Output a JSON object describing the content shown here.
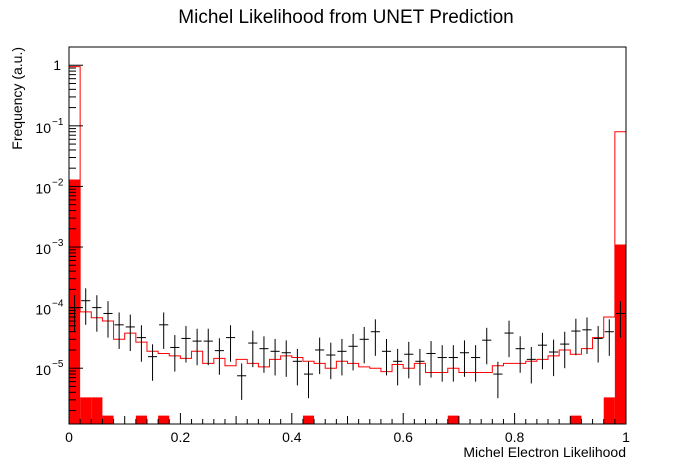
{
  "chart_data": {
    "type": "histogram",
    "title": "Michel Likelihood from UNET Prediction",
    "xlabel": "Michel Electron Likelihood",
    "ylabel": "Frequency (a.u.)",
    "xlim": [
      0,
      1
    ],
    "ylim": [
      1.2e-06,
      2.0
    ],
    "y_scale": "log",
    "bins": 50,
    "x_ticks": [
      {
        "value": 0,
        "label": "0"
      },
      {
        "value": 0.2,
        "label": "0.2"
      },
      {
        "value": 0.4,
        "label": "0.4"
      },
      {
        "value": 0.6,
        "label": "0.6"
      },
      {
        "value": 0.8,
        "label": "0.8"
      },
      {
        "value": 1,
        "label": "1"
      }
    ],
    "y_ticks": [
      {
        "value": 1,
        "base": "1",
        "exp": ""
      },
      {
        "value": 0.1,
        "base": "10",
        "exp": "−1"
      },
      {
        "value": 0.01,
        "base": "10",
        "exp": "−2"
      },
      {
        "value": 0.001,
        "base": "10",
        "exp": "−3"
      },
      {
        "value": 0.0001,
        "base": "10",
        "exp": "−4"
      },
      {
        "value": 1e-05,
        "base": "10",
        "exp": "−5"
      }
    ],
    "series": [
      {
        "style": "filled-histogram",
        "color": "#ff0000",
        "values": [
          0.013,
          3.3e-06,
          3.3e-06,
          1.65e-06,
          0,
          0,
          1.65e-06,
          0,
          1.65e-06,
          0,
          0,
          0,
          0,
          0,
          0,
          0,
          0,
          0,
          0,
          0,
          0,
          1.65e-06,
          0,
          0,
          0,
          0,
          0,
          0,
          0,
          0,
          0,
          0,
          0,
          0,
          1.65e-06,
          0,
          0,
          0,
          0,
          0,
          0,
          0,
          0,
          0,
          0,
          1.65e-06,
          0,
          0,
          3.3e-06,
          0.0011
        ]
      },
      {
        "style": "step-line",
        "color": "#ff0000",
        "values": [
          0.95,
          8.5e-05,
          6.8e-05,
          6e-05,
          3e-05,
          3.8e-05,
          2.7e-05,
          1.9e-05,
          1.75e-05,
          1.6e-05,
          1.45e-05,
          1.9e-05,
          1.2e-05,
          1.45e-05,
          1.1e-05,
          1.4e-05,
          1.2e-05,
          1.05e-05,
          1.4e-05,
          1.6e-05,
          1.5e-05,
          1.3e-05,
          1.2e-05,
          1e-05,
          1.3e-05,
          1.2e-05,
          1.05e-05,
          1e-05,
          8.8e-06,
          1.15e-05,
          1e-05,
          1.2e-05,
          8.5e-06,
          8.5e-06,
          1e-05,
          8.5e-06,
          8.5e-06,
          8.5e-06,
          1.1e-05,
          1.2e-05,
          1.2e-05,
          1.3e-05,
          1.4e-05,
          1.6e-05,
          2e-05,
          1.7e-05,
          2.1e-05,
          3.2e-05,
          7e-05,
          0.08
        ]
      },
      {
        "style": "points-errorbars",
        "color": "#000000",
        "values": [
          0.0001,
          0.00013,
          0.0001,
          8e-05,
          5.2e-05,
          4.8e-05,
          3.2e-05,
          1.55e-05,
          5.2e-05,
          2.2e-05,
          3.1e-05,
          2.8e-05,
          2.8e-05,
          1.95e-05,
          3.2e-05,
          7.5e-06,
          2.6e-05,
          2.1e-05,
          1.9e-05,
          1.8e-05,
          1.3e-05,
          8e-06,
          2e-05,
          1.65e-05,
          1.9e-05,
          2.3e-05,
          3e-05,
          4e-05,
          1.9e-05,
          1.3e-05,
          1.7e-05,
          1.3e-05,
          1.75e-05,
          1.5e-05,
          1.5e-05,
          1.8e-05,
          1.5e-05,
          2.9e-05,
          8e-06,
          3.8e-05,
          2.1e-05,
          1.4e-05,
          2.4e-05,
          1.85e-05,
          2.5e-05,
          4.1e-05,
          4.3e-05,
          3.1e-05,
          4e-05,
          8e-05
        ],
        "y_err_frac": 0.6
      }
    ]
  }
}
